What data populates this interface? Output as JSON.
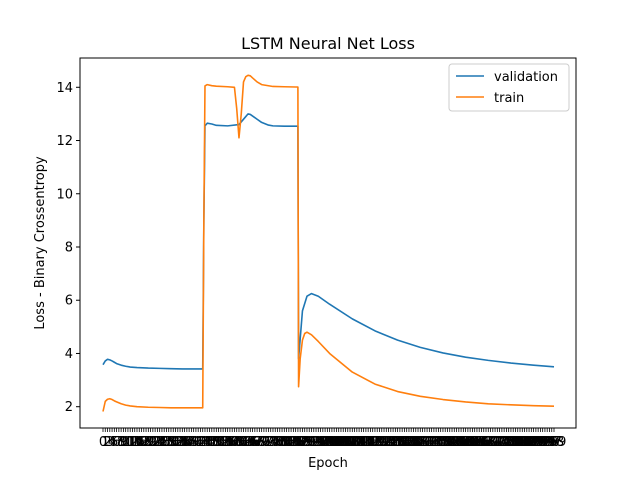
{
  "chart_data": {
    "type": "line",
    "title": "LSTM Neural Net Loss",
    "xlabel": "Epoch",
    "ylabel": "Loss - Binary Crossentropy",
    "xlim": [
      0,
      200
    ],
    "ylim": [
      1.2,
      15.1
    ],
    "yticks": [
      2,
      4,
      6,
      8,
      10,
      12,
      14
    ],
    "xtick_note": "x tick labels 0..199 are drawn densely overlapping",
    "grid": false,
    "legend": "top-right",
    "series": [
      {
        "name": "validation",
        "color": "#1f77b4",
        "x": [
          0,
          1,
          2,
          3,
          4,
          5,
          6,
          8,
          10,
          12,
          15,
          20,
          25,
          30,
          35,
          40,
          44,
          44.5,
          45,
          46,
          48,
          50,
          55,
          60,
          63,
          64,
          65,
          68,
          70,
          73,
          75,
          80,
          85,
          86,
          86.3,
          88,
          90,
          92,
          95,
          100,
          110,
          120,
          130,
          140,
          150,
          160,
          170,
          180,
          190,
          199
        ],
        "values": [
          3.58,
          3.72,
          3.78,
          3.76,
          3.72,
          3.67,
          3.62,
          3.56,
          3.52,
          3.49,
          3.47,
          3.45,
          3.44,
          3.43,
          3.42,
          3.42,
          3.42,
          9.0,
          12.55,
          12.65,
          12.62,
          12.57,
          12.55,
          12.6,
          12.9,
          13.0,
          12.98,
          12.8,
          12.68,
          12.58,
          12.55,
          12.54,
          12.54,
          12.54,
          3.8,
          5.6,
          6.15,
          6.25,
          6.15,
          5.85,
          5.3,
          4.85,
          4.5,
          4.23,
          4.02,
          3.86,
          3.74,
          3.64,
          3.56,
          3.5
        ]
      },
      {
        "name": "train",
        "color": "#ff7f0e",
        "x": [
          0,
          1,
          2,
          3,
          4,
          5,
          6,
          8,
          10,
          12,
          15,
          20,
          25,
          30,
          35,
          40,
          44,
          44.5,
          45,
          46,
          48,
          50,
          55,
          58,
          59,
          60,
          61,
          62,
          63,
          64,
          65,
          66,
          68,
          70,
          75,
          80,
          85,
          86,
          86.3,
          87,
          88,
          89,
          90,
          92,
          95,
          100,
          110,
          120,
          130,
          140,
          150,
          160,
          170,
          180,
          190,
          199
        ],
        "values": [
          1.82,
          2.2,
          2.28,
          2.3,
          2.27,
          2.22,
          2.18,
          2.11,
          2.06,
          2.03,
          2.0,
          1.98,
          1.97,
          1.96,
          1.96,
          1.96,
          1.96,
          9.0,
          14.05,
          14.1,
          14.06,
          14.04,
          14.02,
          14.0,
          13.2,
          12.1,
          13.0,
          14.2,
          14.4,
          14.45,
          14.43,
          14.35,
          14.2,
          14.1,
          14.03,
          14.02,
          14.01,
          14.01,
          2.75,
          3.8,
          4.5,
          4.75,
          4.8,
          4.7,
          4.45,
          4.0,
          3.3,
          2.85,
          2.57,
          2.39,
          2.27,
          2.18,
          2.11,
          2.07,
          2.04,
          2.02
        ]
      }
    ]
  }
}
